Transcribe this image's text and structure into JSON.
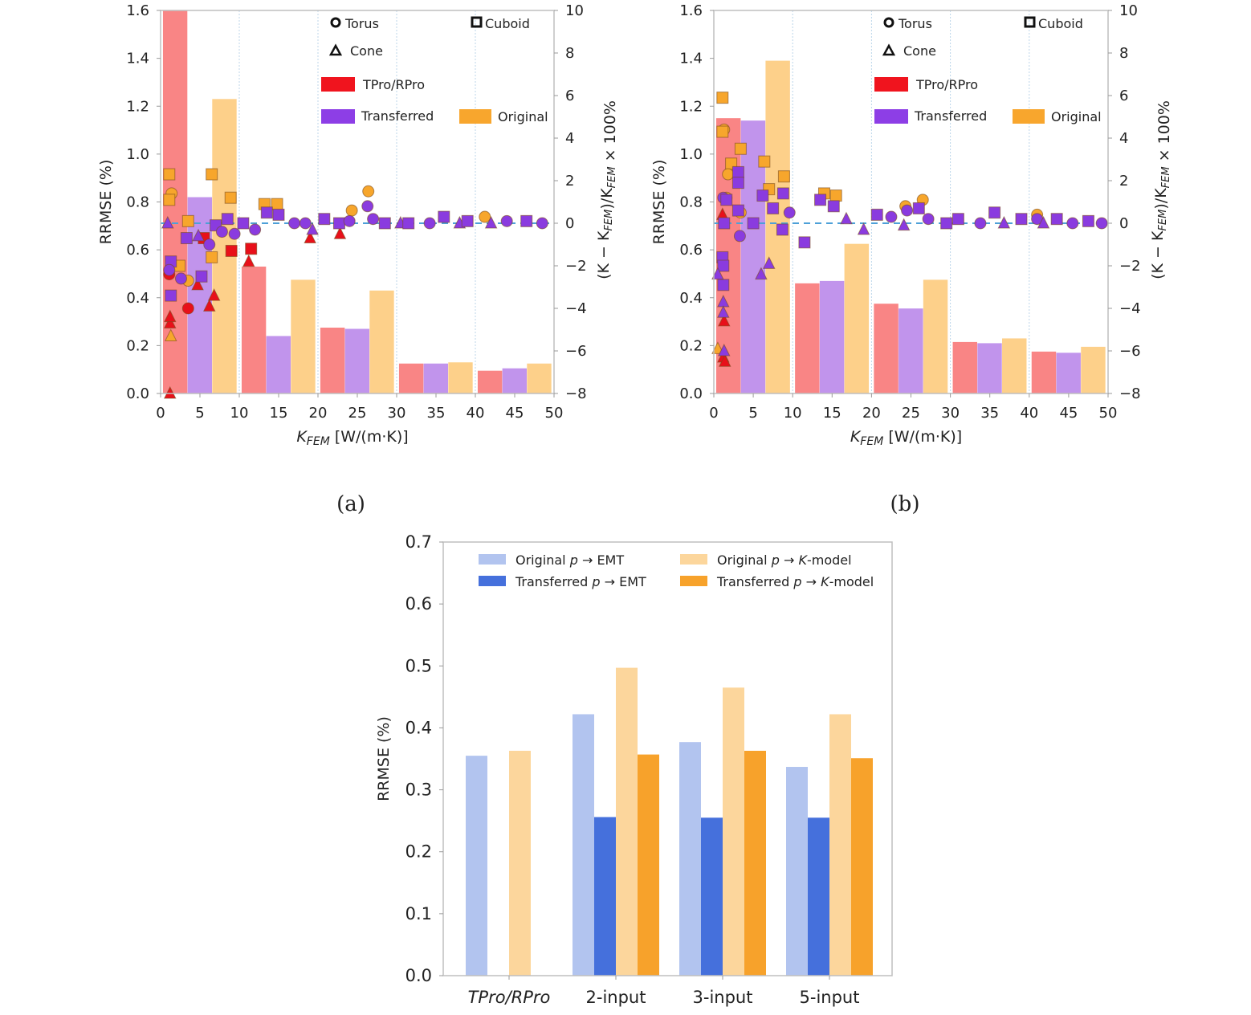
{
  "chart_data": [
    {
      "panel": "a",
      "type": "bar",
      "caption": "(a)",
      "xlabel": "K_FEM [W/(m·K)]",
      "xlabel_main": "K",
      "xlabel_sub": "FEM",
      "xlabel_rest": " [W/(m·K)]",
      "ylabel": "RRMSE (%)",
      "y2label": "(K − K_FEM)/K_FEM × 100%",
      "xlim": [
        0,
        50
      ],
      "ylim": [
        0,
        1.6
      ],
      "y2lim": [
        -8,
        10
      ],
      "xticks": [
        "0",
        "5",
        "10",
        "15",
        "20",
        "25",
        "30",
        "35",
        "40",
        "45",
        "50"
      ],
      "yticks": [
        "0.0",
        "0.2",
        "0.4",
        "0.6",
        "0.8",
        "1.0",
        "1.2",
        "1.4",
        "1.6"
      ],
      "y2ticks": [
        "−8",
        "−6",
        "−4",
        "−2",
        "0",
        "2",
        "4",
        "6",
        "8",
        "10"
      ],
      "bins": [
        "0-10",
        "10-20",
        "20-30",
        "30-40",
        "40-50"
      ],
      "series": [
        {
          "name": "TPro/RPro",
          "values": [
            1.6,
            0.53,
            0.275,
            0.125,
            0.095
          ]
        },
        {
          "name": "Transferred",
          "values": [
            0.82,
            0.24,
            0.27,
            0.125,
            0.105
          ]
        },
        {
          "name": "Original",
          "values": [
            1.23,
            0.475,
            0.43,
            0.13,
            0.125
          ]
        }
      ],
      "scatter": [
        {
          "s": "orig",
          "m": "sq",
          "x": 1.1,
          "y": 2.3
        },
        {
          "s": "orig",
          "m": "ci",
          "x": 1.4,
          "y": 1.4
        },
        {
          "s": "orig",
          "m": "sq",
          "x": 1.1,
          "y": 1.1
        },
        {
          "s": "orig",
          "m": "sq",
          "x": 6.5,
          "y": 2.3
        },
        {
          "s": "orig",
          "m": "sq",
          "x": 8.9,
          "y": 1.2
        },
        {
          "s": "orig",
          "m": "sq",
          "x": 3.5,
          "y": 0.1
        },
        {
          "s": "orig",
          "m": "sq",
          "x": 13.2,
          "y": 0.9
        },
        {
          "s": "orig",
          "m": "sq",
          "x": 14.8,
          "y": 0.9
        },
        {
          "s": "orig",
          "m": "ci",
          "x": 26.4,
          "y": 1.5
        },
        {
          "s": "orig",
          "m": "ci",
          "x": 24.3,
          "y": 0.6
        },
        {
          "s": "orig",
          "m": "tr",
          "x": 1.3,
          "y": -5.3
        },
        {
          "s": "orig",
          "m": "sq",
          "x": 2.4,
          "y": -2.0
        },
        {
          "s": "orig",
          "m": "ci",
          "x": 3.5,
          "y": -2.7
        },
        {
          "s": "orig",
          "m": "sq",
          "x": 6.5,
          "y": -1.6
        },
        {
          "s": "orig",
          "m": "ci",
          "x": 41.2,
          "y": 0.3
        },
        {
          "s": "trans",
          "m": "tr",
          "x": 0.9,
          "y": 0.0
        },
        {
          "s": "trans",
          "m": "sq",
          "x": 1.3,
          "y": -1.8
        },
        {
          "s": "trans",
          "m": "ci",
          "x": 1.1,
          "y": -2.2
        },
        {
          "s": "trans",
          "m": "sq",
          "x": 1.3,
          "y": -3.4
        },
        {
          "s": "trans",
          "m": "ci",
          "x": 2.6,
          "y": -2.6
        },
        {
          "s": "trans",
          "m": "sq",
          "x": 3.3,
          "y": -0.7
        },
        {
          "s": "trans",
          "m": "tr",
          "x": 4.8,
          "y": -0.6
        },
        {
          "s": "trans",
          "m": "sq",
          "x": 5.2,
          "y": -2.5
        },
        {
          "s": "trans",
          "m": "ci",
          "x": 6.2,
          "y": -1.0
        },
        {
          "s": "trans",
          "m": "sq",
          "x": 7.0,
          "y": -0.1
        },
        {
          "s": "trans",
          "m": "ci",
          "x": 7.8,
          "y": -0.4
        },
        {
          "s": "trans",
          "m": "sq",
          "x": 8.5,
          "y": 0.2
        },
        {
          "s": "trans",
          "m": "ci",
          "x": 9.4,
          "y": -0.5
        },
        {
          "s": "trans",
          "m": "sq",
          "x": 10.5,
          "y": 0.0
        },
        {
          "s": "trans",
          "m": "ci",
          "x": 12.0,
          "y": -0.3
        },
        {
          "s": "trans",
          "m": "sq",
          "x": 13.5,
          "y": 0.5
        },
        {
          "s": "trans",
          "m": "sq",
          "x": 15.0,
          "y": 0.4
        },
        {
          "s": "trans",
          "m": "ci",
          "x": 17.0,
          "y": 0.0
        },
        {
          "s": "trans",
          "m": "ci",
          "x": 18.4,
          "y": 0.0
        },
        {
          "s": "trans",
          "m": "tr",
          "x": 19.3,
          "y": -0.3
        },
        {
          "s": "trans",
          "m": "sq",
          "x": 20.8,
          "y": 0.2
        },
        {
          "s": "trans",
          "m": "sq",
          "x": 22.7,
          "y": 0.0
        },
        {
          "s": "trans",
          "m": "ci",
          "x": 24.0,
          "y": 0.1
        },
        {
          "s": "trans",
          "m": "ci",
          "x": 26.3,
          "y": 0.8
        },
        {
          "s": "trans",
          "m": "ci",
          "x": 27.0,
          "y": 0.2
        },
        {
          "s": "trans",
          "m": "sq",
          "x": 28.5,
          "y": 0.0
        },
        {
          "s": "trans",
          "m": "tr",
          "x": 30.5,
          "y": 0.0
        },
        {
          "s": "trans",
          "m": "sq",
          "x": 31.5,
          "y": 0.0
        },
        {
          "s": "trans",
          "m": "ci",
          "x": 34.2,
          "y": 0.0
        },
        {
          "s": "trans",
          "m": "sq",
          "x": 36.0,
          "y": 0.3
        },
        {
          "s": "trans",
          "m": "tr",
          "x": 38.0,
          "y": 0.0
        },
        {
          "s": "trans",
          "m": "sq",
          "x": 39.0,
          "y": 0.1
        },
        {
          "s": "trans",
          "m": "tr",
          "x": 42.0,
          "y": 0.0
        },
        {
          "s": "trans",
          "m": "ci",
          "x": 44.0,
          "y": 0.1
        },
        {
          "s": "trans",
          "m": "sq",
          "x": 46.5,
          "y": 0.1
        },
        {
          "s": "trans",
          "m": "ci",
          "x": 48.5,
          "y": 0.0
        },
        {
          "s": "tpro",
          "m": "tr",
          "x": 1.2,
          "y": -8.0
        },
        {
          "s": "tpro",
          "m": "tr",
          "x": 1.2,
          "y": -4.7
        },
        {
          "s": "tpro",
          "m": "tr",
          "x": 1.2,
          "y": -4.4
        },
        {
          "s": "tpro",
          "m": "ci",
          "x": 3.5,
          "y": -4.0
        },
        {
          "s": "tpro",
          "m": "ci",
          "x": 1.1,
          "y": -2.4
        },
        {
          "s": "tpro",
          "m": "tr",
          "x": 4.7,
          "y": -2.9
        },
        {
          "s": "tpro",
          "m": "tr",
          "x": 6.2,
          "y": -3.9
        },
        {
          "s": "tpro",
          "m": "tr",
          "x": 6.8,
          "y": -3.4
        },
        {
          "s": "tpro",
          "m": "sq",
          "x": 9.0,
          "y": -1.3
        },
        {
          "s": "tpro",
          "m": "sq",
          "x": 11.5,
          "y": -1.2
        },
        {
          "s": "tpro",
          "m": "tr",
          "x": 11.2,
          "y": -1.8
        },
        {
          "s": "tpro",
          "m": "tr",
          "x": 19.0,
          "y": -0.7
        },
        {
          "s": "tpro",
          "m": "tr",
          "x": 22.8,
          "y": -0.5
        },
        {
          "s": "tpro",
          "m": "sq",
          "x": 5.5,
          "y": -0.7
        }
      ]
    },
    {
      "panel": "b",
      "type": "bar",
      "caption": "(b)",
      "xlabel": "K_FEM [W/(m·K)]",
      "xlabel_main": "K",
      "xlabel_sub": "FEM",
      "xlabel_rest": " [W/(m·K)]",
      "ylabel": "RRMSE (%)",
      "y2label": "(K − K_FEM)/K_FEM × 100%",
      "xlim": [
        0,
        50
      ],
      "ylim": [
        0,
        1.6
      ],
      "y2lim": [
        -8,
        10
      ],
      "xticks": [
        "0",
        "5",
        "10",
        "15",
        "20",
        "25",
        "30",
        "35",
        "40",
        "45",
        "50"
      ],
      "yticks": [
        "0.0",
        "0.2",
        "0.4",
        "0.6",
        "0.8",
        "1.0",
        "1.2",
        "1.4",
        "1.6"
      ],
      "y2ticks": [
        "−8",
        "−6",
        "−4",
        "−2",
        "0",
        "2",
        "4",
        "6",
        "8",
        "10"
      ],
      "bins": [
        "0-10",
        "10-20",
        "20-30",
        "30-40",
        "40-50"
      ],
      "series": [
        {
          "name": "TPro/RPro",
          "values": [
            1.15,
            0.46,
            0.375,
            0.215,
            0.175
          ]
        },
        {
          "name": "Transferred",
          "values": [
            1.14,
            0.47,
            0.355,
            0.21,
            0.17
          ]
        },
        {
          "name": "Original",
          "values": [
            1.39,
            0.625,
            0.475,
            0.23,
            0.195
          ]
        }
      ],
      "scatter": [
        {
          "s": "orig",
          "m": "sq",
          "x": 1.1,
          "y": 5.9
        },
        {
          "s": "orig",
          "m": "ci",
          "x": 1.3,
          "y": 4.4
        },
        {
          "s": "orig",
          "m": "sq",
          "x": 1.1,
          "y": 4.3
        },
        {
          "s": "orig",
          "m": "sq",
          "x": 3.4,
          "y": 3.5
        },
        {
          "s": "orig",
          "m": "sq",
          "x": 2.2,
          "y": 2.8
        },
        {
          "s": "orig",
          "m": "ci",
          "x": 1.8,
          "y": 2.3
        },
        {
          "s": "orig",
          "m": "ci",
          "x": 1.6,
          "y": 1.2
        },
        {
          "s": "orig",
          "m": "sq",
          "x": 6.4,
          "y": 2.9
        },
        {
          "s": "orig",
          "m": "sq",
          "x": 8.9,
          "y": 2.2
        },
        {
          "s": "orig",
          "m": "ci",
          "x": 3.4,
          "y": 0.5
        },
        {
          "s": "orig",
          "m": "sq",
          "x": 14.0,
          "y": 1.4
        },
        {
          "s": "orig",
          "m": "sq",
          "x": 15.5,
          "y": 1.3
        },
        {
          "s": "orig",
          "m": "ci",
          "x": 24.3,
          "y": 0.8
        },
        {
          "s": "orig",
          "m": "ci",
          "x": 26.5,
          "y": 1.1
        },
        {
          "s": "orig",
          "m": "tr",
          "x": 0.5,
          "y": -5.9
        },
        {
          "s": "orig",
          "m": "sq",
          "x": 7.0,
          "y": 1.6
        },
        {
          "s": "orig",
          "m": "ci",
          "x": 41.0,
          "y": 0.4
        },
        {
          "s": "trans",
          "m": "ci",
          "x": 1.2,
          "y": 1.2
        },
        {
          "s": "trans",
          "m": "sq",
          "x": 1.6,
          "y": 1.1
        },
        {
          "s": "trans",
          "m": "sq",
          "x": 1.3,
          "y": 0.0
        },
        {
          "s": "trans",
          "m": "sq",
          "x": 3.1,
          "y": 2.4
        },
        {
          "s": "trans",
          "m": "sq",
          "x": 3.1,
          "y": 1.9
        },
        {
          "s": "trans",
          "m": "sq",
          "x": 3.1,
          "y": 0.6
        },
        {
          "s": "trans",
          "m": "ci",
          "x": 3.3,
          "y": -0.6
        },
        {
          "s": "trans",
          "m": "sq",
          "x": 1.1,
          "y": -1.6
        },
        {
          "s": "trans",
          "m": "sq",
          "x": 1.2,
          "y": -2.0
        },
        {
          "s": "trans",
          "m": "sq",
          "x": 1.2,
          "y": -2.9
        },
        {
          "s": "trans",
          "m": "tr",
          "x": 1.2,
          "y": -3.7
        },
        {
          "s": "trans",
          "m": "tr",
          "x": 1.2,
          "y": -4.2
        },
        {
          "s": "trans",
          "m": "tr",
          "x": 0.5,
          "y": -2.4
        },
        {
          "s": "trans",
          "m": "tr",
          "x": 1.3,
          "y": -6.0
        },
        {
          "s": "trans",
          "m": "tr",
          "x": 6.0,
          "y": -2.4
        },
        {
          "s": "trans",
          "m": "tr",
          "x": 7.0,
          "y": -1.9
        },
        {
          "s": "trans",
          "m": "sq",
          "x": 5.0,
          "y": 0.0
        },
        {
          "s": "trans",
          "m": "sq",
          "x": 6.2,
          "y": 1.3
        },
        {
          "s": "trans",
          "m": "sq",
          "x": 7.5,
          "y": 0.7
        },
        {
          "s": "trans",
          "m": "sq",
          "x": 8.8,
          "y": 1.4
        },
        {
          "s": "trans",
          "m": "ci",
          "x": 9.6,
          "y": 0.5
        },
        {
          "s": "trans",
          "m": "sq",
          "x": 8.7,
          "y": -0.3
        },
        {
          "s": "trans",
          "m": "sq",
          "x": 11.5,
          "y": -0.9
        },
        {
          "s": "trans",
          "m": "sq",
          "x": 13.5,
          "y": 1.1
        },
        {
          "s": "trans",
          "m": "sq",
          "x": 15.2,
          "y": 0.8
        },
        {
          "s": "trans",
          "m": "tr",
          "x": 16.8,
          "y": 0.2
        },
        {
          "s": "trans",
          "m": "tr",
          "x": 19.0,
          "y": -0.3
        },
        {
          "s": "trans",
          "m": "sq",
          "x": 20.7,
          "y": 0.4
        },
        {
          "s": "trans",
          "m": "ci",
          "x": 22.5,
          "y": 0.3
        },
        {
          "s": "trans",
          "m": "ci",
          "x": 24.5,
          "y": 0.6
        },
        {
          "s": "trans",
          "m": "sq",
          "x": 26.0,
          "y": 0.7
        },
        {
          "s": "trans",
          "m": "ci",
          "x": 27.2,
          "y": 0.2
        },
        {
          "s": "trans",
          "m": "tr",
          "x": 24.1,
          "y": -0.1
        },
        {
          "s": "trans",
          "m": "sq",
          "x": 29.5,
          "y": 0.0
        },
        {
          "s": "trans",
          "m": "sq",
          "x": 31.0,
          "y": 0.2
        },
        {
          "s": "trans",
          "m": "ci",
          "x": 33.8,
          "y": 0.0
        },
        {
          "s": "trans",
          "m": "sq",
          "x": 35.6,
          "y": 0.5
        },
        {
          "s": "trans",
          "m": "tr",
          "x": 36.8,
          "y": 0.0
        },
        {
          "s": "trans",
          "m": "sq",
          "x": 39.0,
          "y": 0.2
        },
        {
          "s": "trans",
          "m": "ci",
          "x": 41.0,
          "y": 0.2
        },
        {
          "s": "trans",
          "m": "tr",
          "x": 41.8,
          "y": 0.0
        },
        {
          "s": "trans",
          "m": "sq",
          "x": 43.5,
          "y": 0.2
        },
        {
          "s": "trans",
          "m": "ci",
          "x": 45.5,
          "y": 0.0
        },
        {
          "s": "trans",
          "m": "sq",
          "x": 47.5,
          "y": 0.1
        },
        {
          "s": "trans",
          "m": "ci",
          "x": 49.2,
          "y": 0.0
        },
        {
          "s": "tpro",
          "m": "tr",
          "x": 1.1,
          "y": 0.4
        },
        {
          "s": "tpro",
          "m": "tr",
          "x": 1.2,
          "y": -6.3
        },
        {
          "s": "tpro",
          "m": "tr",
          "x": 1.4,
          "y": -6.5
        },
        {
          "s": "tpro",
          "m": "tr",
          "x": 1.3,
          "y": -4.6
        }
      ]
    },
    {
      "panel": "c",
      "type": "bar",
      "caption": "",
      "title": "",
      "xlabel": "",
      "ylabel": "RRMSE (%)",
      "ylim": [
        0,
        0.7
      ],
      "yticks": [
        "0.0",
        "0.1",
        "0.2",
        "0.3",
        "0.4",
        "0.5",
        "0.6",
        "0.7"
      ],
      "categories": [
        "TPro/RPro",
        "2-input",
        "3-input",
        "5-input"
      ],
      "series": [
        {
          "name": "Original p → EMT",
          "values": [
            0.355,
            0.422,
            0.377,
            0.337
          ]
        },
        {
          "name": "Transferred p → EMT",
          "values": [
            null,
            0.256,
            0.255,
            0.255
          ]
        },
        {
          "name": "Original p → K-model",
          "values": [
            0.363,
            0.497,
            0.465,
            0.422
          ]
        },
        {
          "name": "Transferred p → K-model",
          "values": [
            null,
            0.357,
            0.363,
            0.351
          ]
        }
      ],
      "legend_location": "top"
    }
  ],
  "legend_ab": {
    "torus": "Torus",
    "cuboid": "Cuboid",
    "cone": "Cone",
    "tpro": "TPro/RPro",
    "transferred": "Transferred",
    "original": "Original"
  },
  "legend_c": [
    {
      "pre": "Original ",
      "p": "p",
      "arrow": "→",
      "post": " EMT"
    },
    {
      "pre": "Transferred ",
      "p": "p",
      "arrow": "→",
      "post": " EMT"
    },
    {
      "pre": "Original ",
      "p": "p",
      "arrow": "→",
      "post": "-model",
      "k": "K"
    },
    {
      "pre": "Transferred ",
      "p": "p",
      "arrow": "→",
      "post": "-model",
      "k": "K"
    }
  ],
  "colors": {
    "tpro_bar": "#f98585",
    "trans_bar": "#c194ec",
    "orig_bar": "#fdd08a",
    "tpro_marker": "#e8101a",
    "trans_marker": "#8a3bdf",
    "orig_marker": "#f7a62c",
    "legend_red": "#f0141e",
    "legend_purple": "#8d3ee6",
    "legend_orange": "#f8a62d",
    "zero_line": "#4da0d8",
    "c_orig_emt": "#b2c4ef",
    "c_trans_emt": "#4570dc",
    "c_orig_k": "#fcd69c",
    "c_trans_k": "#f7a22b"
  }
}
